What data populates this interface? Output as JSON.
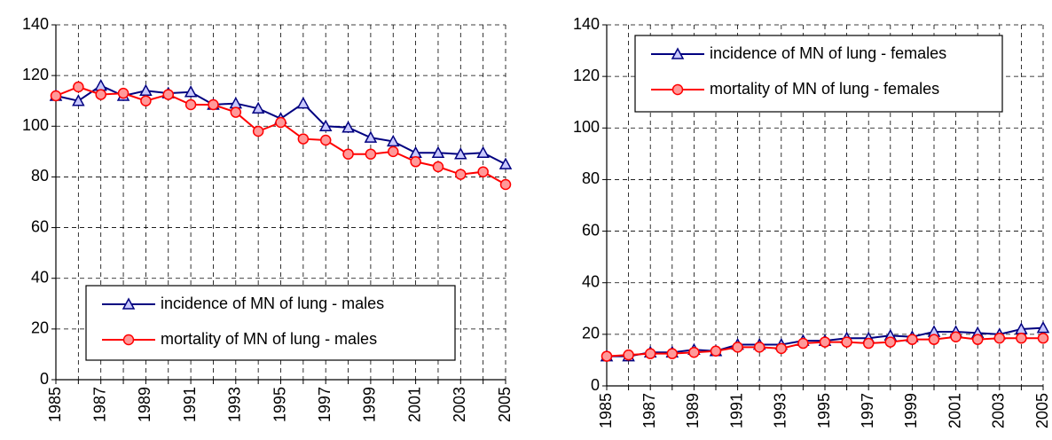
{
  "chart_data": [
    {
      "type": "line",
      "categories": [
        "1985",
        null,
        "1987",
        null,
        "1989",
        null,
        "1991",
        null,
        "1993",
        null,
        "1995",
        null,
        "1997",
        null,
        "1999",
        null,
        "2001",
        null,
        "2003",
        null,
        "2005"
      ],
      "ylim": [
        0,
        140
      ],
      "yticks": [
        0,
        20,
        40,
        60,
        80,
        100,
        120,
        140
      ],
      "grid": true,
      "legend": "lower center",
      "series": [
        {
          "name": "incidence of MN of lung - males",
          "color": "#000080",
          "marker": "triangle",
          "values": [
            112,
            110,
            116,
            112,
            114,
            113,
            113.5,
            108.5,
            109,
            107,
            103,
            109,
            100,
            99.5,
            95.5,
            94,
            89.5,
            89.5,
            89,
            89.5,
            85
          ]
        },
        {
          "name": "mortality of MN of lung - males",
          "color": "#ff0000",
          "marker": "circle",
          "values": [
            112,
            115.5,
            112.5,
            113,
            110,
            112.5,
            108.5,
            108.5,
            105.5,
            98,
            101.5,
            95,
            94.5,
            89,
            89,
            90,
            86,
            84,
            81,
            82,
            77
          ]
        }
      ]
    },
    {
      "type": "line",
      "categories": [
        "1985",
        null,
        "1987",
        null,
        "1989",
        null,
        "1991",
        null,
        "1993",
        null,
        "1995",
        null,
        "1997",
        null,
        "1999",
        null,
        "2001",
        null,
        "2003",
        null,
        "2005"
      ],
      "ylim": [
        0,
        140
      ],
      "yticks": [
        0,
        20,
        40,
        60,
        80,
        100,
        120,
        140
      ],
      "grid": true,
      "legend": "upper left",
      "series": [
        {
          "name": "incidence of MN of lung - females",
          "color": "#000080",
          "marker": "triangle",
          "values": [
            11.5,
            11.5,
            13,
            13,
            14,
            13.5,
            16,
            16,
            16,
            17.5,
            17.5,
            18.5,
            18.5,
            19.5,
            19,
            21,
            21,
            20.5,
            20,
            22,
            22.5
          ]
        },
        {
          "name": "mortality of MN of lung - females",
          "color": "#ff0000",
          "marker": "circle",
          "values": [
            11.5,
            12,
            12.5,
            12.5,
            13,
            13.5,
            15,
            15,
            14.5,
            16.5,
            17,
            17,
            16.5,
            17,
            18,
            18,
            19,
            18,
            18.5,
            18.5,
            18.5
          ]
        }
      ]
    }
  ]
}
